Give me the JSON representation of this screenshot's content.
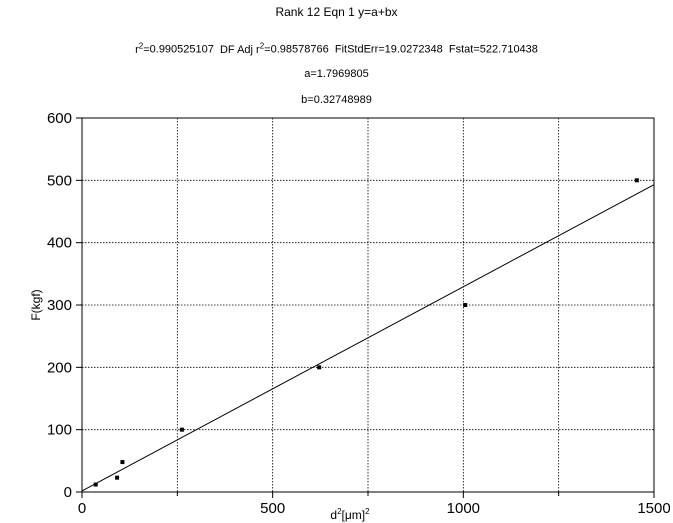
{
  "chart_data": {
    "type": "scatter",
    "title": "Rank 12  Eqn 1  y=a+bx",
    "stats": {
      "r2": "0.990525107",
      "df_adj_r2": "0.98578766",
      "fit_std_err": "19.0272348",
      "fstat": "522.710438"
    },
    "params": {
      "a": "a=1.7969805",
      "b": "b=0.32748989"
    },
    "xlabel": "d",
    "xlabel_units": "[μm]",
    "ylabel": "F(kgf)",
    "xlim": [
      0,
      1500
    ],
    "ylim": [
      0,
      600
    ],
    "x_ticks": [
      0,
      500,
      1000,
      1500
    ],
    "y_ticks": [
      0,
      100,
      200,
      300,
      400,
      500,
      600
    ],
    "x_minor_ticks": [
      250,
      750,
      1250
    ],
    "grid": true,
    "points": [
      {
        "x": 36,
        "y": 12
      },
      {
        "x": 92,
        "y": 23
      },
      {
        "x": 106,
        "y": 48
      },
      {
        "x": 262,
        "y": 100
      },
      {
        "x": 622,
        "y": 200
      },
      {
        "x": 1005,
        "y": 300
      },
      {
        "x": 1455,
        "y": 500
      }
    ],
    "fit": {
      "a": 1.7969805,
      "b": 0.32748989
    }
  }
}
